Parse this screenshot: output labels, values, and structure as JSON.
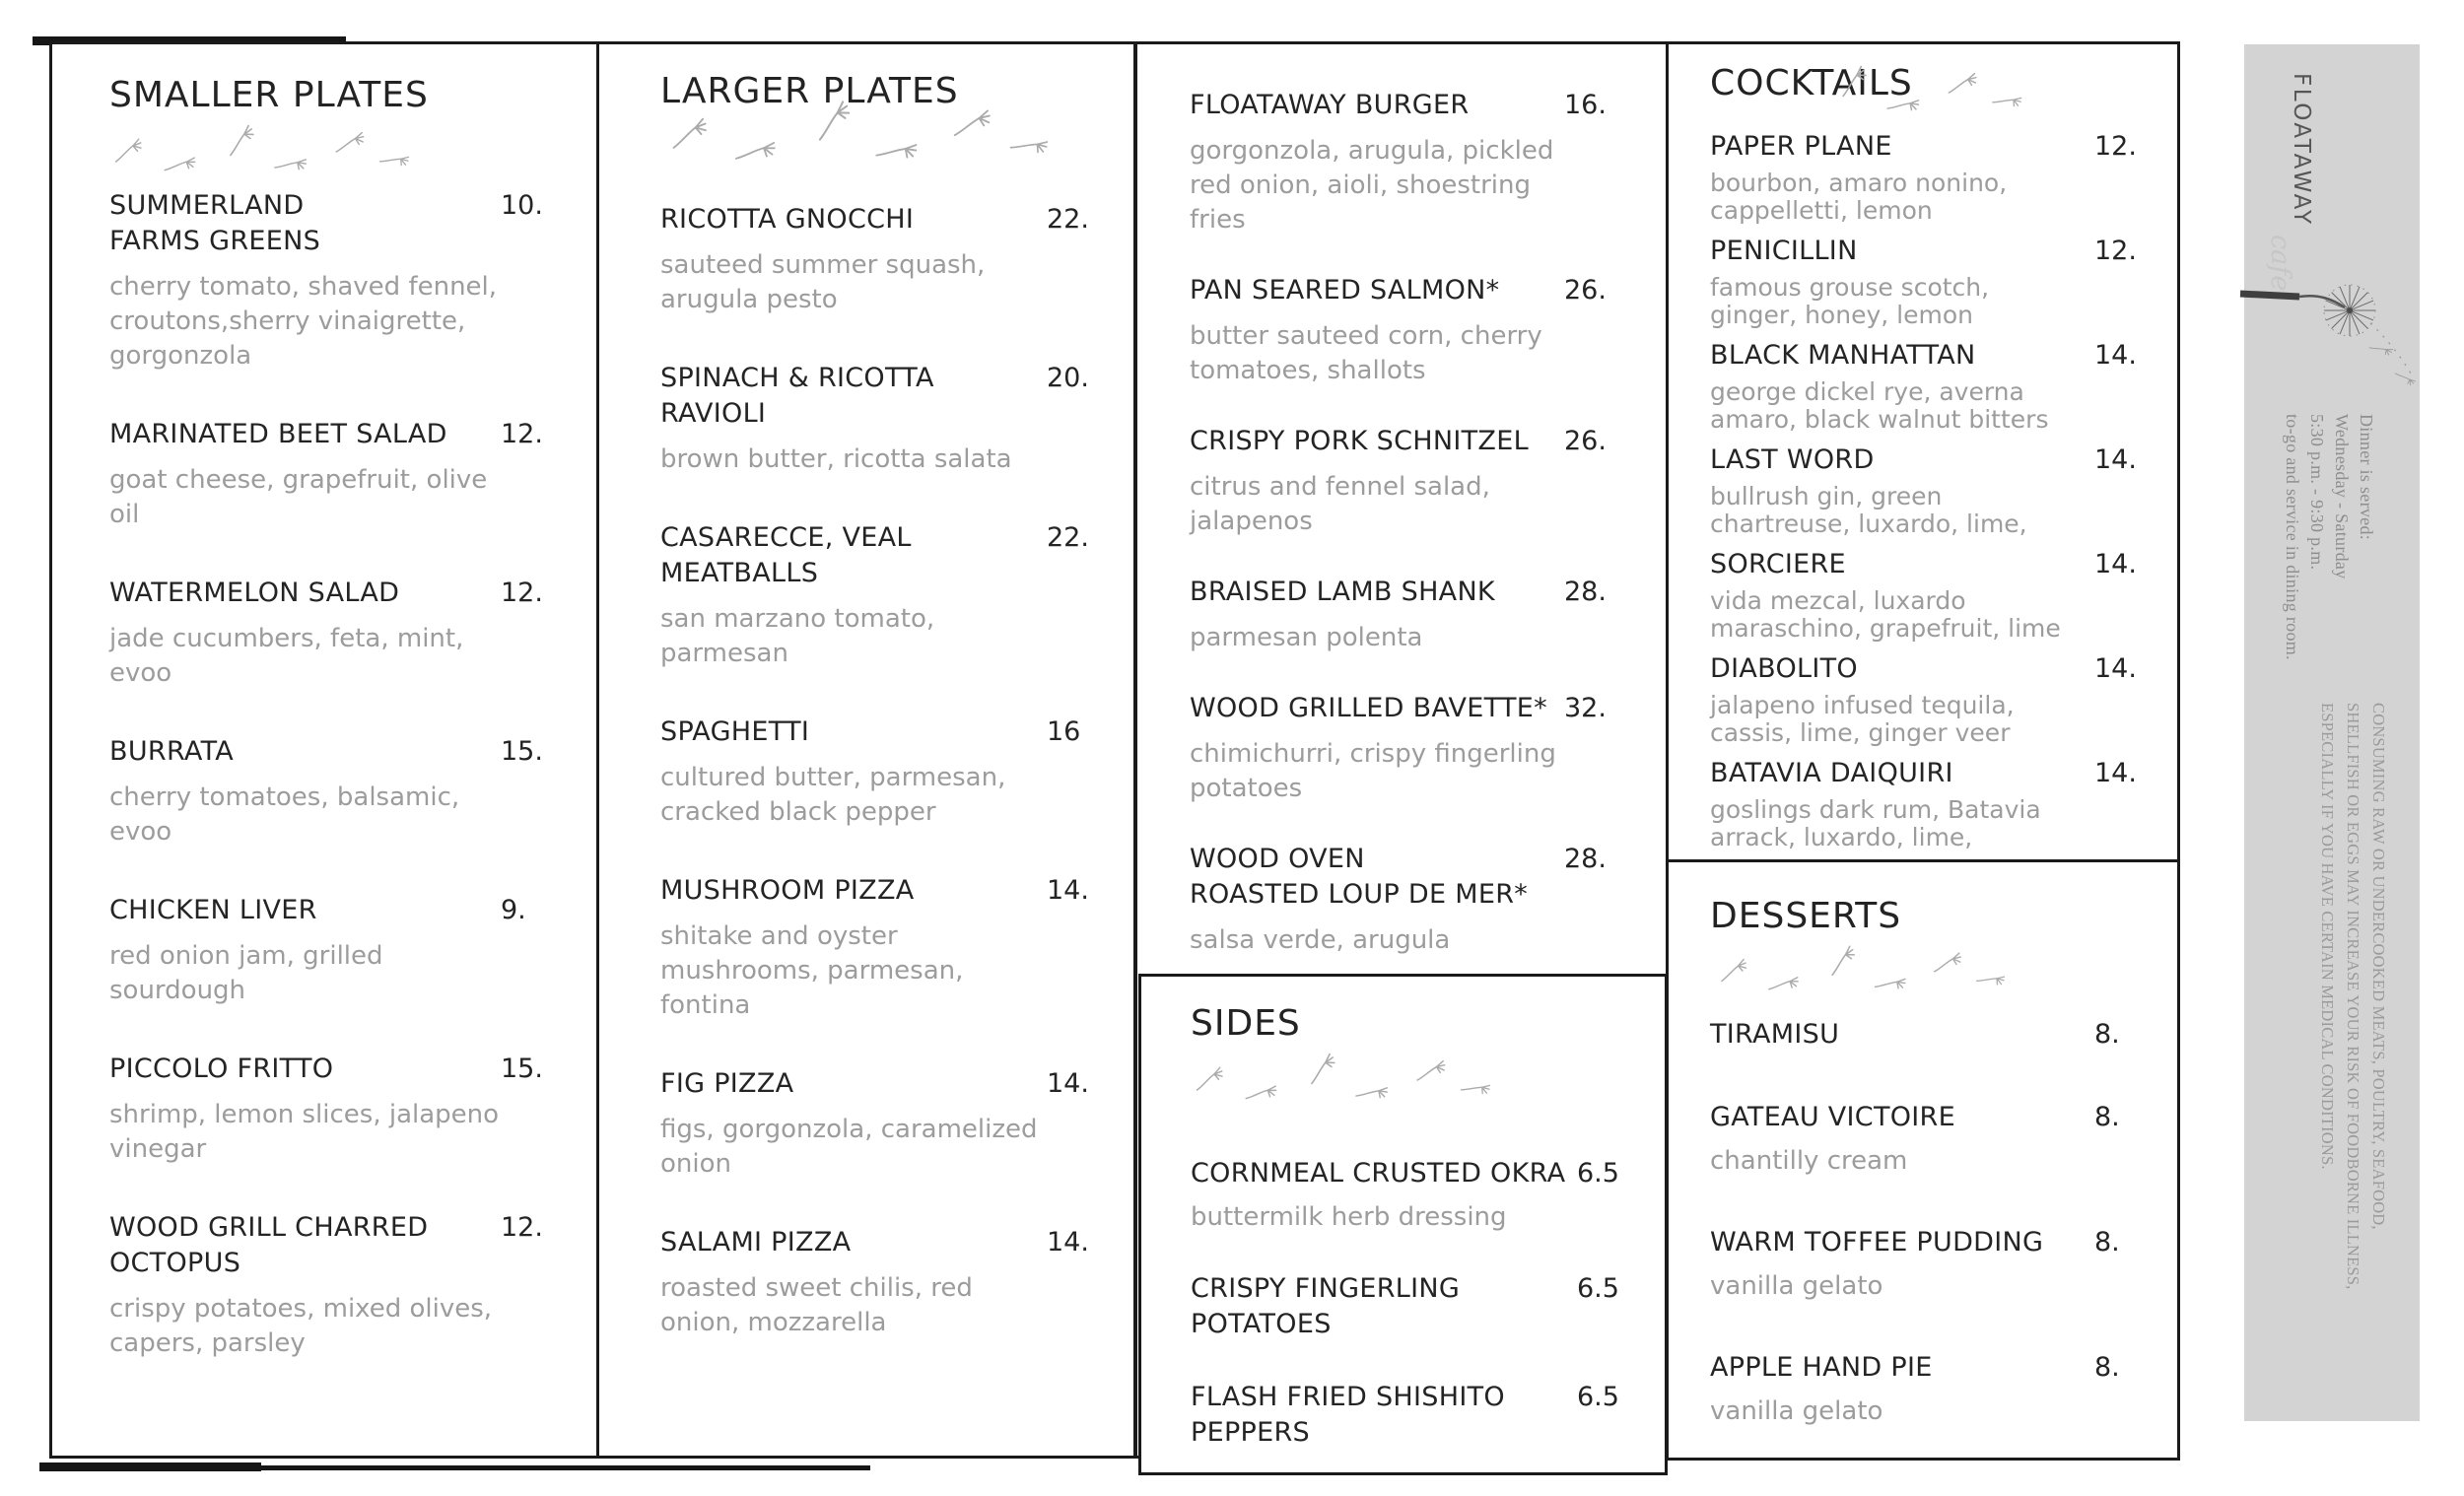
{
  "brand": {
    "name_vertical": "FLOATAWAY",
    "script": "cafe"
  },
  "menu": {
    "smaller_plates": {
      "title": "SMALLER PLATES",
      "items": [
        {
          "name": "SUMMERLAND\nFARMS GREENS",
          "price": "10.",
          "desc": "cherry tomato, shaved fennel,\ncroutons,sherry vinaigrette,\ngorgonzola"
        },
        {
          "name": "MARINATED BEET SALAD",
          "price": "12.",
          "desc": "goat cheese, grapefruit, olive\noil"
        },
        {
          "name": "WATERMELON SALAD",
          "price": "12.",
          "desc": "jade cucumbers, feta, mint,\nevoo"
        },
        {
          "name": "BURRATA",
          "price": "15.",
          "desc": "cherry tomatoes, balsamic,\nevoo"
        },
        {
          "name": "CHICKEN LIVER",
          "price": "9.",
          "desc": "red onion jam, grilled\nsourdough"
        },
        {
          "name": "PICCOLO FRITTO",
          "price": "15.",
          "desc": "shrimp, lemon slices, jalapeno\nvinegar"
        },
        {
          "name": "WOOD GRILL CHARRED\nOCTOPUS",
          "price": "12.",
          "desc": "crispy potatoes, mixed olives,\ncapers, parsley"
        }
      ]
    },
    "larger_plates": {
      "title": "LARGER PLATES",
      "items": [
        {
          "name": "RICOTTA GNOCCHI",
          "price": "22.",
          "desc": "sauteed summer squash,\narugula pesto"
        },
        {
          "name": "SPINACH & RICOTTA\nRAVIOLI",
          "price": "20.",
          "desc": "brown butter, ricotta salata"
        },
        {
          "name": "CASARECCE, VEAL\nMEATBALLS",
          "price": "22.",
          "desc": "san marzano tomato,\nparmesan"
        },
        {
          "name": "SPAGHETTI",
          "price": "16",
          "desc": "cultured butter, parmesan,\ncracked black pepper"
        },
        {
          "name": "MUSHROOM PIZZA",
          "price": "14.",
          "desc": "shitake and oyster\nmushrooms, parmesan,\nfontina"
        },
        {
          "name": "FIG PIZZA",
          "price": "14.",
          "desc": "figs, gorgonzola, caramelized\nonion"
        },
        {
          "name": "SALAMI PIZZA",
          "price": "14.",
          "desc": "roasted sweet chilis, red\nonion, mozzarella"
        }
      ]
    },
    "mains": {
      "items": [
        {
          "name": "FLOATAWAY BURGER",
          "price": "16.",
          "desc": "gorgonzola, arugula, pickled\nred onion, aioli, shoestring\nfries"
        },
        {
          "name": "PAN SEARED SALMON*",
          "price": "26.",
          "desc": "butter sauteed corn, cherry\ntomatoes, shallots"
        },
        {
          "name": "CRISPY PORK SCHNITZEL",
          "price": "26.",
          "desc": "citrus and fennel salad,\njalapenos"
        },
        {
          "name": "BRAISED LAMB SHANK",
          "price": "28.",
          "desc": "parmesan polenta"
        },
        {
          "name": "WOOD GRILLED BAVETTE*",
          "price": "32.",
          "desc": "chimichurri, crispy fingerling\npotatoes"
        },
        {
          "name": "WOOD OVEN\nROASTED LOUP DE MER*",
          "price": "28.",
          "desc": "salsa verde, arugula"
        }
      ]
    },
    "sides": {
      "title": "SIDES",
      "items": [
        {
          "name": "CORNMEAL CRUSTED OKRA",
          "price": "6.5",
          "desc": "buttermilk herb dressing"
        },
        {
          "name": "CRISPY FINGERLING\nPOTATOES",
          "price": "6.5"
        },
        {
          "name": "FLASH FRIED SHISHITO\nPEPPERS",
          "price": "6.5"
        }
      ]
    },
    "cocktails": {
      "title": "COCKTAILS",
      "items": [
        {
          "name": "PAPER PLANE",
          "price": "12.",
          "desc": "bourbon, amaro nonino,\ncappelletti, lemon"
        },
        {
          "name": "PENICILLIN",
          "price": "12.",
          "desc": "famous grouse scotch,\nginger, honey, lemon"
        },
        {
          "name": "BLACK MANHATTAN",
          "price": "14.",
          "desc": "george dickel rye, averna\namaro, black walnut bitters"
        },
        {
          "name": "LAST WORD",
          "price": "14.",
          "desc": "bullrush gin, green\nchartreuse, luxardo, lime,"
        },
        {
          "name": "SORCIERE",
          "price": "14.",
          "desc": "vida mezcal, luxardo\nmaraschino, grapefruit, lime"
        },
        {
          "name": "DIABOLITO",
          "price": "14.",
          "desc": "jalapeno infused tequila,\ncassis, lime, ginger veer"
        },
        {
          "name": "BATAVIA DAIQUIRI",
          "price": "14.",
          "desc": "goslings dark rum, Batavia\narrack, luxardo, lime,"
        }
      ]
    },
    "desserts": {
      "title": "DESSERTS",
      "items": [
        {
          "name": "TIRAMISU",
          "price": "8."
        },
        {
          "name": "GATEAU VICTOIRE",
          "price": "8.",
          "desc": "chantilly cream"
        },
        {
          "name": "WARM TOFFEE PUDDING",
          "price": "8.",
          "desc": "vanilla gelato"
        },
        {
          "name": "APPLE HAND PIE",
          "price": "8.",
          "desc": "vanilla gelato"
        }
      ]
    }
  },
  "sidebar": {
    "hours": "Dinner is served:\nWednesday - Saturday\n5:30 p.m. - 9:30 p.m.\nto-go and service in dining room.",
    "disclaimer": "CONSUMING RAW OR UNDERCOOKED MEATS, POULTRY, SEAFOOD,\nSHELLFISH OR EGGS MAY INCREASE YOUR RISK OF FOODBORNE ILLNESS,\nESPECIALLY IF YOU HAVE CERTAIN MEDICAL CONDITIONS."
  },
  "colors": {
    "ink": "#1a1a1a",
    "muted": "#9c9c9c",
    "sidebar_bg": "#d3d3d3"
  }
}
